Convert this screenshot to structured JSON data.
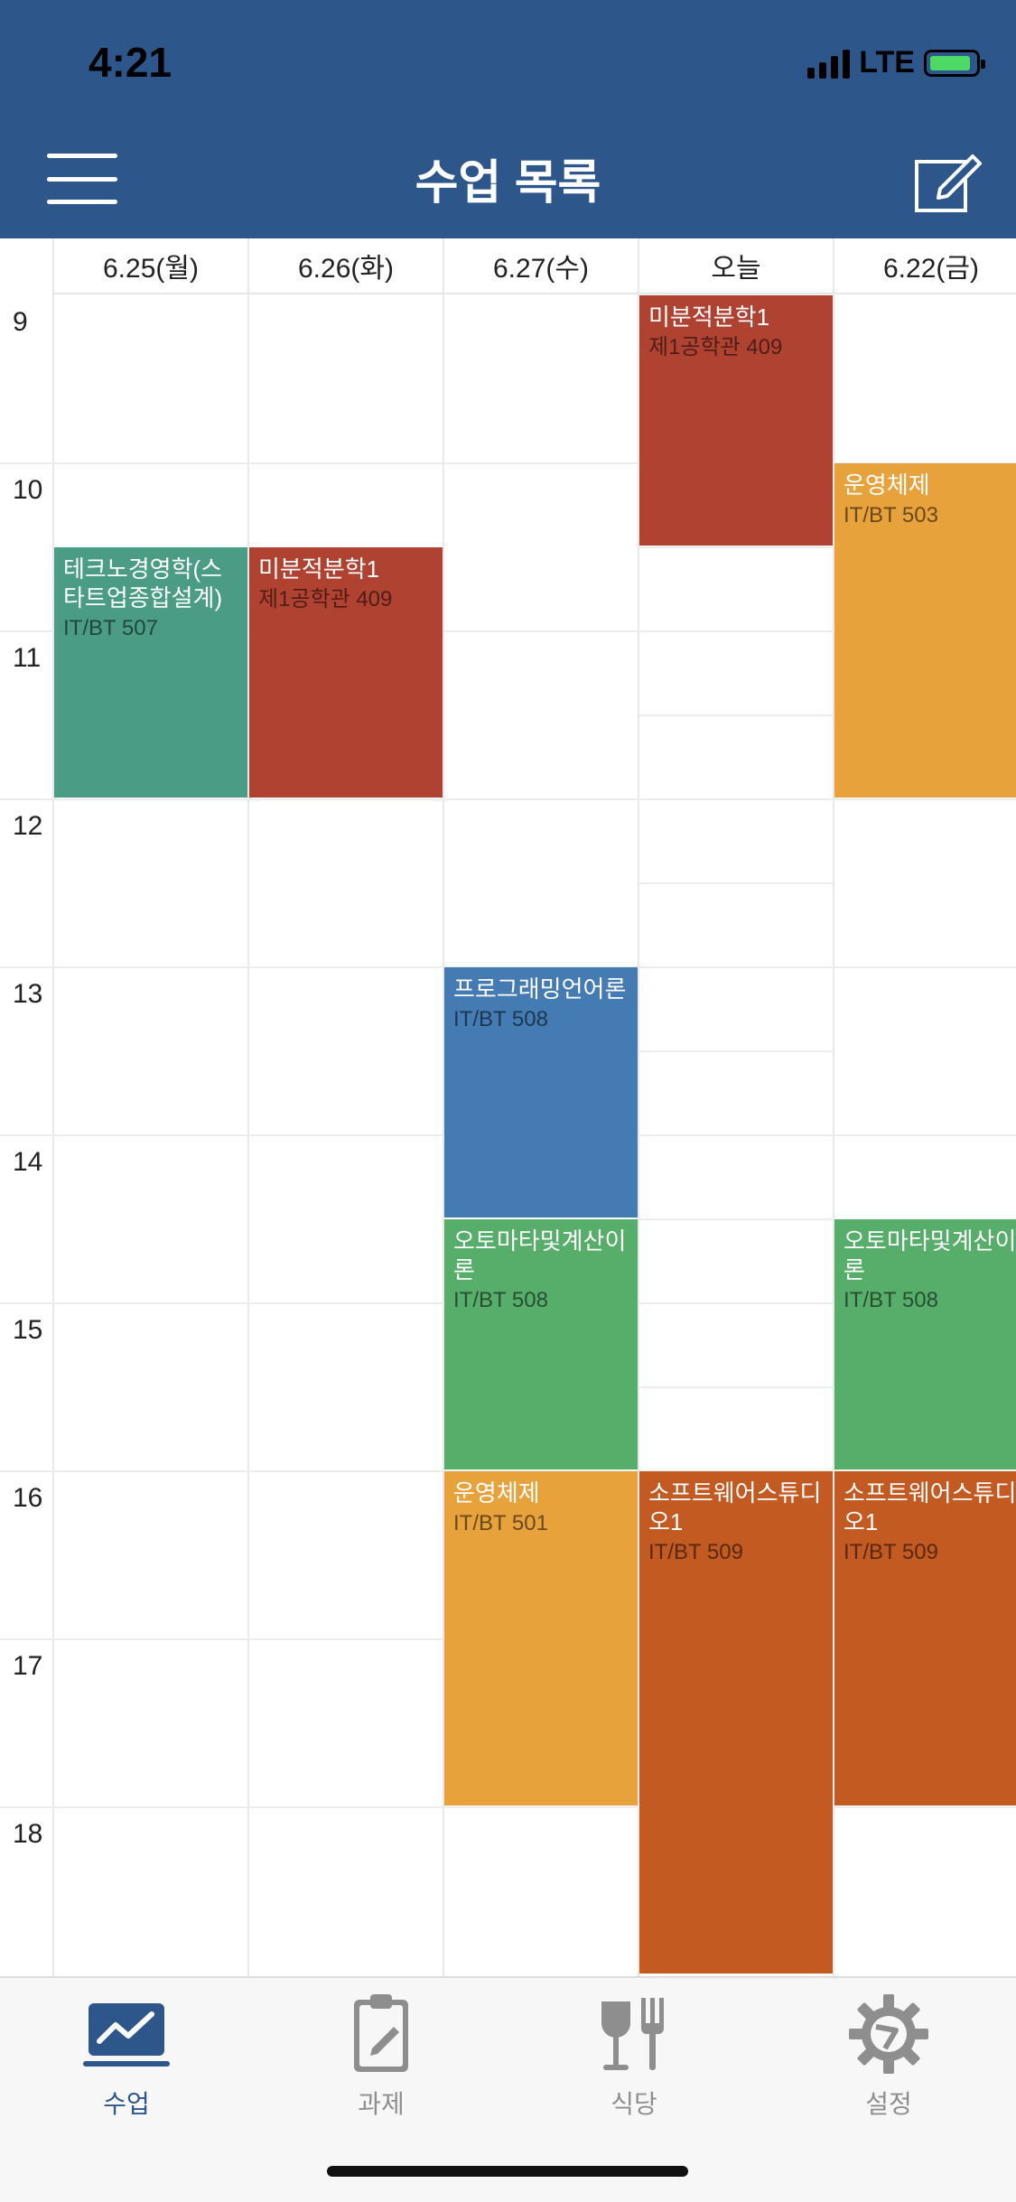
{
  "status_bar": {
    "time": "4:21",
    "network": "LTE"
  },
  "header": {
    "title": "수업 목록"
  },
  "colors": {
    "header_bg": "#2d568a",
    "tab_active": "#2d568a",
    "tab_inactive": "#8e8e8e",
    "event_red": "#b04232",
    "event_teal": "#4a9c84",
    "event_yellow": "#e8a23c",
    "event_blue": "#447bb3",
    "event_green": "#57ae6a",
    "event_orange": "#c35a22"
  },
  "timetable": {
    "days": [
      "6.25(월)",
      "6.26(화)",
      "6.27(수)",
      "오늘",
      "6.22(금)"
    ],
    "hours": [
      "9",
      "10",
      "11",
      "12",
      "13",
      "14",
      "15",
      "16",
      "17",
      "18"
    ],
    "events": [
      {
        "day": 0,
        "start": 10.5,
        "end": 12,
        "name": "테크노경영학(스타트업종합설계)",
        "room": "IT/BT 507",
        "color": "#4a9c84"
      },
      {
        "day": 1,
        "start": 10.5,
        "end": 12,
        "name": "미분적분학1",
        "room": "제1공학관 409",
        "color": "#b04232"
      },
      {
        "day": 2,
        "start": 13,
        "end": 14.5,
        "name": "프로그래밍언어론",
        "room": "IT/BT 508",
        "color": "#447bb3"
      },
      {
        "day": 2,
        "start": 14.5,
        "end": 16,
        "name": "오토마타및계산이론",
        "room": "IT/BT 508",
        "color": "#57ae6a"
      },
      {
        "day": 2,
        "start": 16,
        "end": 18,
        "name": "운영체제",
        "room": "IT/BT 501",
        "color": "#e8a23c"
      },
      {
        "day": 3,
        "start": 9,
        "end": 10.5,
        "name": "미분적분학1",
        "room": "제1공학관 409",
        "color": "#b04232"
      },
      {
        "day": 3,
        "start": 16,
        "end": 19,
        "name": "소프트웨어스튜디오1",
        "room": "IT/BT 509",
        "color": "#c35a22"
      },
      {
        "day": 4,
        "start": 10,
        "end": 12,
        "name": "운영체제",
        "room": "IT/BT 503",
        "color": "#e8a23c"
      },
      {
        "day": 4,
        "start": 14.5,
        "end": 16,
        "name": "오토마타및계산이론",
        "room": "IT/BT 508",
        "color": "#57ae6a"
      },
      {
        "day": 4,
        "start": 16,
        "end": 18,
        "name": "소프트웨어스튜디오1",
        "room": "IT/BT 509",
        "color": "#c35a22"
      }
    ]
  },
  "tabs": [
    {
      "label": "수업",
      "icon": "chart-icon",
      "active": true
    },
    {
      "label": "과제",
      "icon": "clipboard-icon",
      "active": false
    },
    {
      "label": "식당",
      "icon": "dining-icon",
      "active": false
    },
    {
      "label": "설정",
      "icon": "gear-icon",
      "active": false
    }
  ]
}
